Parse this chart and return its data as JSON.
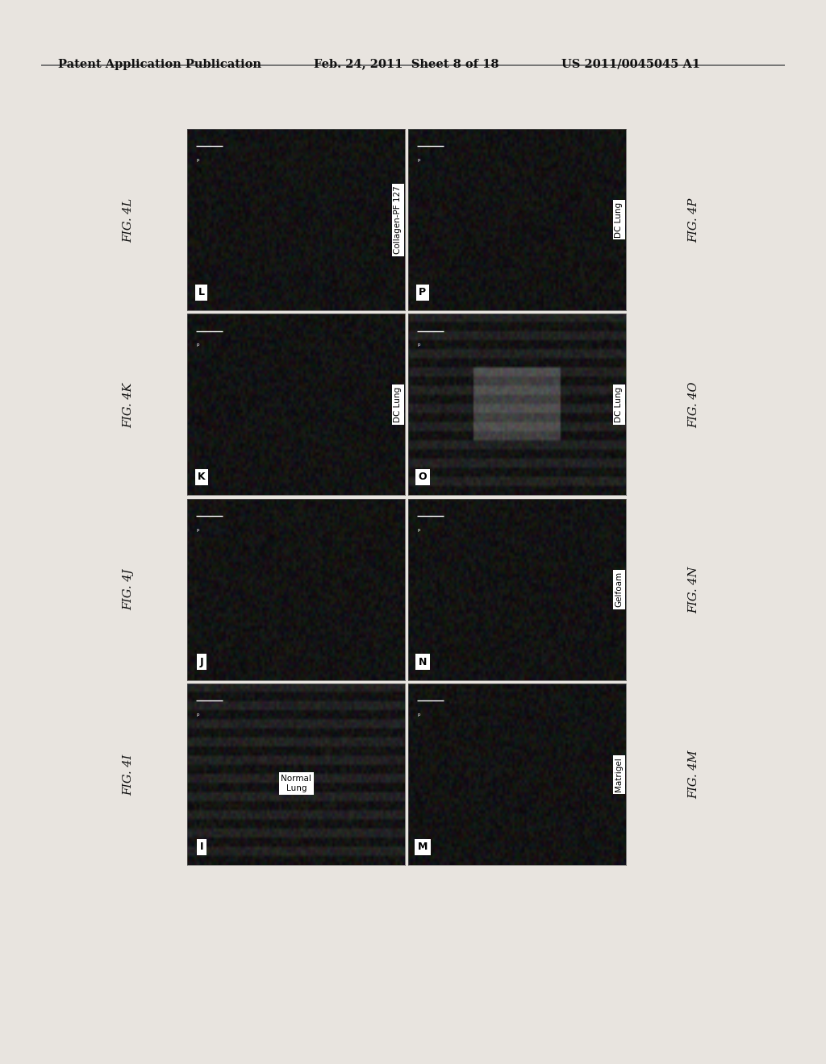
{
  "bg_color": "#e8e4df",
  "header_text_left": "Patent Application Publication",
  "header_text_mid": "Feb. 24, 2011  Sheet 8 of 18",
  "header_text_right": "US 2011/0045045 A1",
  "header_fontsize": 10.5,
  "fig_label_fontsize": 10.5,
  "panel_letter_fontsize": 9,
  "panel_label_fontsize": 7.5,
  "panel_configs": [
    {
      "row": 3,
      "col": 0,
      "letter": "L",
      "label": "Collagen-PF 127",
      "rotation": 90,
      "stripes": false,
      "fig_label": "FIG. 4L",
      "fig_side": "left"
    },
    {
      "row": 2,
      "col": 0,
      "letter": "K",
      "label": "DC Lung",
      "rotation": 90,
      "stripes": false,
      "fig_label": "FIG. 4K",
      "fig_side": "left"
    },
    {
      "row": 1,
      "col": 0,
      "letter": "J",
      "label": "",
      "rotation": 0,
      "stripes": false,
      "fig_label": "FIG. 4J",
      "fig_side": "left"
    },
    {
      "row": 0,
      "col": 0,
      "letter": "I",
      "label": "Normal\nLung",
      "rotation": 0,
      "stripes": true,
      "fig_label": "FIG. 4I",
      "fig_side": "left"
    },
    {
      "row": 3,
      "col": 1,
      "letter": "P",
      "label": "DC Lung",
      "rotation": 90,
      "stripes": false,
      "fig_label": "FIG. 4P",
      "fig_side": "right"
    },
    {
      "row": 2,
      "col": 1,
      "letter": "O",
      "label": "DC Lung",
      "rotation": 90,
      "stripes": true,
      "fig_label": "FIG. 4O",
      "fig_side": "right"
    },
    {
      "row": 1,
      "col": 1,
      "letter": "N",
      "label": "Gelfoam",
      "rotation": 90,
      "stripes": false,
      "fig_label": "FIG. 4N",
      "fig_side": "right"
    },
    {
      "row": 0,
      "col": 1,
      "letter": "M",
      "label": "Matrigel",
      "rotation": 90,
      "stripes": false,
      "fig_label": "FIG. 4M",
      "fig_side": "right"
    }
  ]
}
